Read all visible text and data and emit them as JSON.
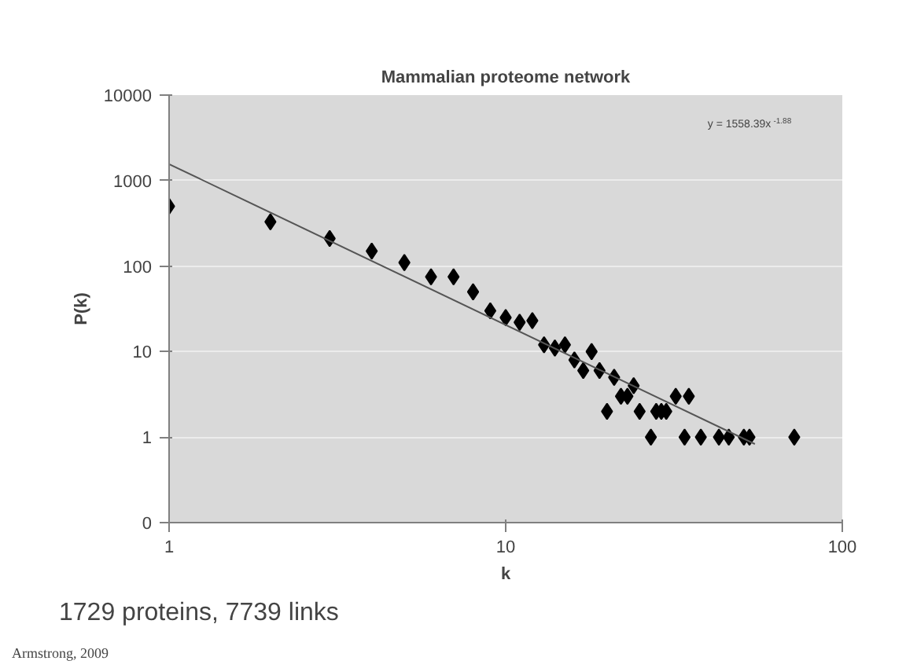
{
  "chart_data": {
    "type": "scatter",
    "title": "Mammalian proteome network",
    "xlabel": "k",
    "ylabel": "P(k)",
    "annotations": [
      "y = 1558.39x$^{-1.88}$",
      "1729 proteins, 7739 links",
      "Armstrong, 2009"
    ],
    "log": "xy",
    "xlim": [
      1,
      100
    ],
    "xticks": [
      1,
      10,
      100
    ],
    "ylim": [
      0.1,
      10000
    ],
    "yticks": [
      {
        "value": 0.1,
        "label": "0"
      },
      1,
      10,
      100,
      1000,
      10000
    ],
    "grid": "y",
    "marker": "diamond",
    "series": [
      {
        "color": "#000000",
        "x": [
          1,
          2,
          3,
          4,
          5,
          6,
          7,
          8,
          9,
          10,
          11,
          12,
          13,
          14,
          15,
          16,
          17,
          18,
          19,
          20,
          21,
          22,
          23,
          24,
          25,
          27,
          28,
          29,
          30,
          32,
          34,
          35,
          38,
          43,
          46,
          51,
          53,
          72
        ],
        "values": [
          500,
          330,
          210,
          150,
          110,
          75,
          75,
          50,
          30,
          25,
          22,
          23,
          12,
          11,
          12,
          8,
          6,
          10,
          6,
          2,
          5,
          3,
          3,
          4,
          2,
          1,
          2,
          2,
          2,
          3,
          1,
          3,
          1,
          1,
          1,
          1,
          1,
          1
        ]
      },
      {
        "type": "line",
        "color": "#555555",
        "x": [
          1,
          55
        ],
        "values": [
          1558,
          0.83
        ],
        "marker": "none"
      }
    ]
  }
}
